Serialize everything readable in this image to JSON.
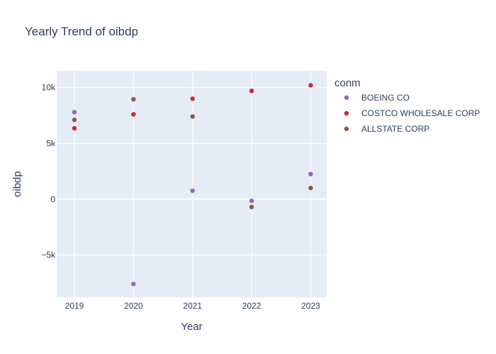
{
  "chart_data": {
    "type": "scatter",
    "title": "Yearly Trend of oibdp",
    "xlabel": "Year",
    "ylabel": "oibdp",
    "x": [
      2019,
      2020,
      2021,
      2022,
      2023
    ],
    "xlim": [
      2018.7,
      2023.27
    ],
    "ylim": [
      -8800,
      11500
    ],
    "x_ticks": [
      2019,
      2020,
      2021,
      2022,
      2023
    ],
    "y_ticks": [
      {
        "value": 10000,
        "label": "10k"
      },
      {
        "value": 5000,
        "label": "5k"
      },
      {
        "value": 0,
        "label": "0"
      },
      {
        "value": -5000,
        "label": "−5k"
      }
    ],
    "legend_title": "conm",
    "legend_position": "right",
    "grid": true,
    "background": "#e5ecf6",
    "series": [
      {
        "name": "BOEING CO",
        "color": "#9467bd",
        "values": [
          7800,
          -7600,
          750,
          -150,
          2250
        ]
      },
      {
        "name": "COSTCO WHOLESALE CORP",
        "color": "#d62728",
        "values": [
          6350,
          7600,
          9000,
          9700,
          10200
        ]
      },
      {
        "name": "ALLSTATE CORP",
        "color": "#8c564b",
        "values": [
          7100,
          8950,
          7400,
          -700,
          1000
        ]
      }
    ]
  }
}
